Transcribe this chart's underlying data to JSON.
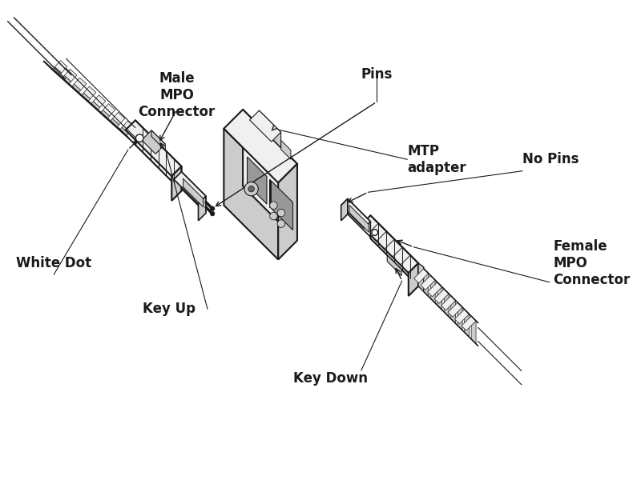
{
  "background_color": "#ffffff",
  "line_color": "#1a1a1a",
  "fill_light": "#f0f0f0",
  "fill_mid": "#cccccc",
  "fill_dark": "#999999",
  "fill_darker": "#666666",
  "fill_white": "#ffffff",
  "labels": {
    "male_connector": "Male\nMPO\nConnector",
    "pins": "Pins",
    "mtp_adapter": "MTP\nadapter",
    "no_pins": "No Pins",
    "white_dot": "White Dot",
    "key_up": "Key Up",
    "key_down": "Key Down",
    "female_connector": "Female\nMPO\nConnector"
  },
  "font_size": 12
}
